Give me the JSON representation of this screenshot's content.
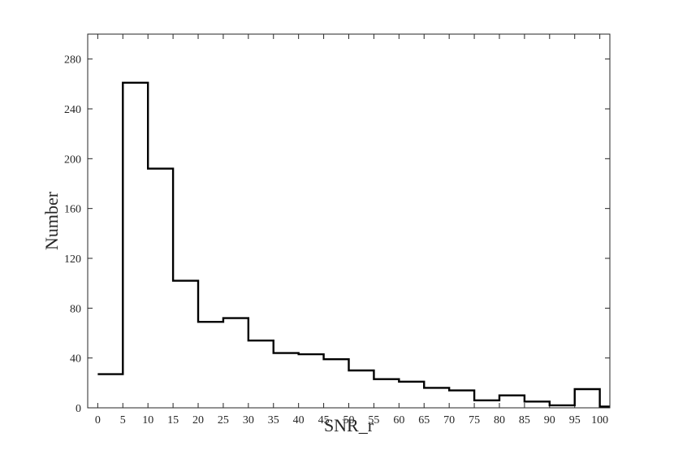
{
  "chart_data": {
    "type": "histogram",
    "title": "",
    "xlabel": "SNR_r",
    "ylabel": "Number",
    "bin_edges": [
      0,
      5,
      10,
      15,
      20,
      25,
      30,
      35,
      40,
      45,
      50,
      55,
      60,
      65,
      70,
      75,
      80,
      85,
      90,
      95,
      100,
      102
    ],
    "values": [
      27,
      261,
      192,
      102,
      69,
      72,
      54,
      44,
      43,
      39,
      30,
      23,
      21,
      16,
      14,
      6,
      10,
      5,
      2,
      15,
      1
    ],
    "xlim": [
      -2,
      102
    ],
    "ylim": [
      0,
      300
    ],
    "xticks": [
      "0",
      "5",
      "10",
      "15",
      "20",
      "25",
      "30",
      "35",
      "40",
      "45",
      "50",
      "55",
      "60",
      "65",
      "70",
      "75",
      "80",
      "85",
      "90",
      "95",
      "100"
    ],
    "yticks": [
      "0",
      "40",
      "80",
      "120",
      "160",
      "200",
      "240",
      "280"
    ],
    "grid": false,
    "colors": {
      "line": "#000000",
      "axis": "#262626"
    }
  }
}
